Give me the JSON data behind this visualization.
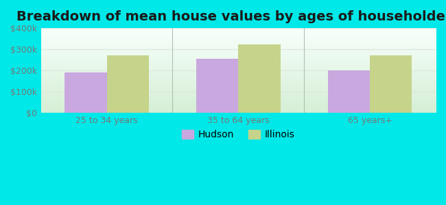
{
  "title": "Breakdown of mean house values by ages of householders",
  "categories": [
    "25 to 34 years",
    "35 to 64 years",
    "65 years+"
  ],
  "hudson_values": [
    190000,
    255000,
    200000
  ],
  "illinois_values": [
    272000,
    322000,
    270000
  ],
  "hudson_color": "#c9a8e0",
  "illinois_color": "#c5d48a",
  "background_outer": "#00e8e8",
  "ylim": [
    0,
    400000
  ],
  "yticks": [
    0,
    100000,
    200000,
    300000,
    400000
  ],
  "ytick_labels": [
    "$0",
    "$100k",
    "$200k",
    "$300k",
    "$400k"
  ],
  "legend_labels": [
    "Hudson",
    "Illinois"
  ],
  "title_fontsize": 14,
  "bar_width": 0.32,
  "grid_color": "#e8e8e8",
  "tick_color": "#777777"
}
